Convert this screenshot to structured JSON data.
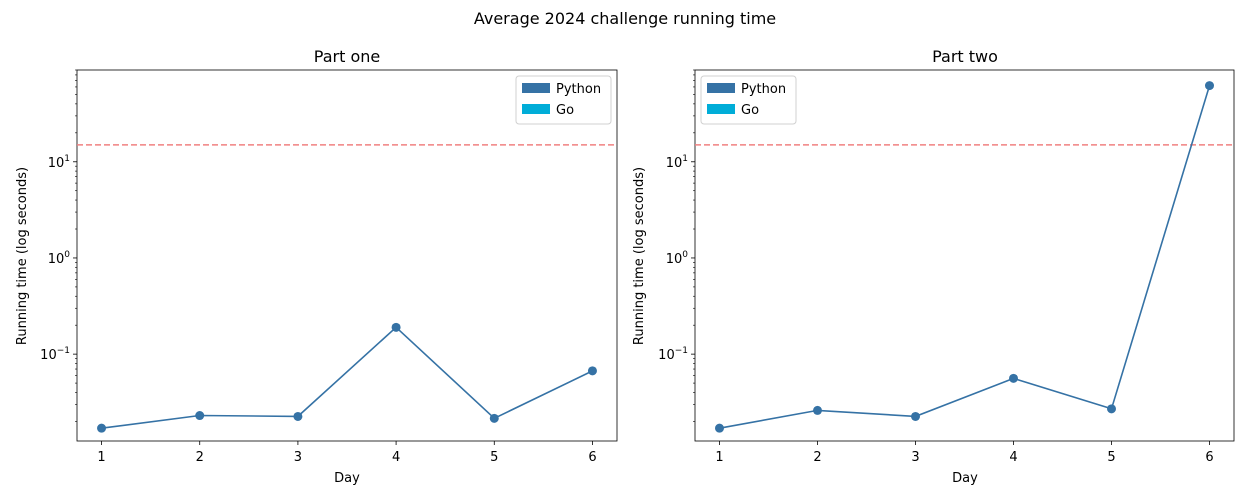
{
  "figure": {
    "title": "Average 2024 challenge running time",
    "threshold_color": "#f08080",
    "colors": {
      "Python": "#3572a5",
      "Go": "#00add8"
    }
  },
  "chart_data": [
    {
      "type": "line",
      "title": "Part one",
      "xlabel": "Day",
      "ylabel": "Running time (log seconds)",
      "yscale": "log",
      "ylim": [
        0.0125,
        90
      ],
      "xlim": [
        0.75,
        6.25
      ],
      "x_ticks": [
        "1",
        "2",
        "3",
        "4",
        "5",
        "6"
      ],
      "threshold": 15,
      "legend": {
        "placement": "upper right",
        "entries": [
          "Python",
          "Go"
        ]
      },
      "series": [
        {
          "name": "Python",
          "x": [
            1,
            2,
            3,
            4,
            5,
            6
          ],
          "values": [
            0.017,
            0.023,
            0.0225,
            0.19,
            0.0215,
            0.067
          ]
        }
      ]
    },
    {
      "type": "line",
      "title": "Part two",
      "xlabel": "Day",
      "ylabel": "Running time (log seconds)",
      "yscale": "log",
      "ylim": [
        0.0125,
        90
      ],
      "xlim": [
        0.75,
        6.25
      ],
      "x_ticks": [
        "1",
        "2",
        "3",
        "4",
        "5",
        "6"
      ],
      "threshold": 15,
      "legend": {
        "placement": "upper left",
        "entries": [
          "Python",
          "Go"
        ]
      },
      "series": [
        {
          "name": "Python",
          "x": [
            1,
            2,
            3,
            4,
            5,
            6
          ],
          "values": [
            0.017,
            0.026,
            0.0225,
            0.056,
            0.027,
            62
          ]
        }
      ]
    }
  ]
}
